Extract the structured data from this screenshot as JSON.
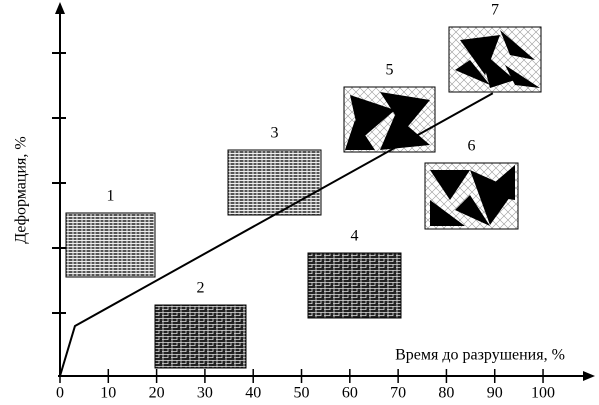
{
  "chart_data": {
    "type": "line",
    "x_label": "Время до разрушения, %",
    "y_label": "Деформация, %",
    "xlim": [
      0,
      112
    ],
    "xticks": [
      0,
      10,
      20,
      30,
      40,
      50,
      60,
      70,
      80,
      90,
      100
    ],
    "ylim": [
      0,
      5.6
    ],
    "x": [
      0,
      3.1,
      89.6
    ],
    "values": [
      0,
      0.77,
      4.35
    ],
    "color": "#000000",
    "annotations": [
      "1",
      "2",
      "3",
      "4",
      "5",
      "6",
      "7"
    ]
  }
}
